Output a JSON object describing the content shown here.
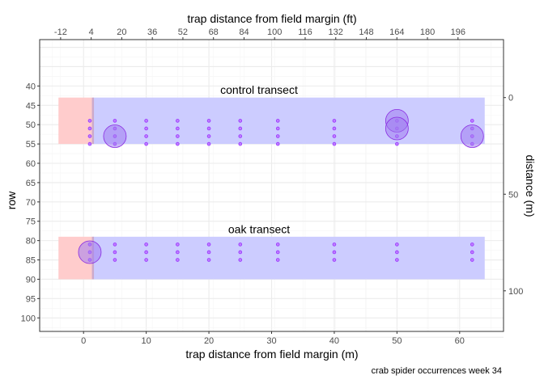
{
  "chart_data": {
    "type": "scatter",
    "title": "",
    "caption": "crab spider occurrences week 34",
    "xlabel": "trap distance from field margin (m)",
    "ylabel": "row",
    "x2label": "trap distance from field margin (ft)",
    "y2label": "distance (m)",
    "xlim": [
      -7,
      67
    ],
    "ylim": [
      103.5,
      28
    ],
    "x_ticks": [
      0,
      10,
      20,
      30,
      40,
      50,
      60
    ],
    "x_minor": [
      -5,
      5,
      15,
      25,
      35,
      45,
      55,
      65
    ],
    "y_ticks": [
      40,
      45,
      50,
      55,
      60,
      65,
      70,
      75,
      80,
      85,
      90,
      95,
      100
    ],
    "x2_ticks": [
      -12,
      4,
      20,
      36,
      52,
      68,
      84,
      100,
      116,
      132,
      148,
      164,
      180,
      196
    ],
    "x2_labels": [
      "-12",
      "4",
      "20",
      "36",
      "52",
      "68",
      "84",
      "100",
      "116",
      "132",
      "148",
      "164",
      "180",
      "196"
    ],
    "y2_ticks": [
      0,
      50,
      100
    ],
    "y2_ref_row": 43,
    "y2_rows_per_m": 0.5,
    "grid": true,
    "legend": "none",
    "colors": {
      "margin_fill": "#ffcccc",
      "field_fill": "#ccccff",
      "divider": "#ccaacc",
      "point_fill": "#bf7fff",
      "point_stroke": "#9933ff",
      "big_fill": "#a07cf0",
      "big_stroke": "#8a2be2",
      "panel_border": "#333333",
      "grid_major": "#ebebeb",
      "grid_minor": "#f5f5f5"
    },
    "regions": [
      {
        "name": "control-margin",
        "x": [
          -4,
          1.5
        ],
        "y": [
          43,
          55
        ]
      },
      {
        "name": "control-field",
        "x": [
          1.5,
          64
        ],
        "y": [
          43,
          55
        ]
      },
      {
        "name": "oak-margin",
        "x": [
          -4,
          1.5
        ],
        "y": [
          79,
          90
        ]
      },
      {
        "name": "oak-field",
        "x": [
          1.5,
          64
        ],
        "y": [
          79,
          90
        ]
      }
    ],
    "annotations": [
      {
        "text": "control transect",
        "x": 28,
        "y": 41
      },
      {
        "text": "oak transect",
        "x": 28,
        "y": 77
      }
    ],
    "trap_x": [
      1,
      5,
      10,
      15,
      20,
      25,
      31,
      40,
      50,
      62
    ],
    "control_rows": [
      49,
      51,
      53,
      55
    ],
    "oak_rows": [
      81,
      83,
      85
    ],
    "occurrences": [
      {
        "x": 5,
        "y": 53,
        "count": 1
      },
      {
        "x": 50,
        "y": 49,
        "count": 1
      },
      {
        "x": 50,
        "y": 51,
        "count": 1
      },
      {
        "x": 62,
        "y": 53,
        "count": 1
      },
      {
        "x": 1,
        "y": 83,
        "count": 1
      }
    ]
  }
}
